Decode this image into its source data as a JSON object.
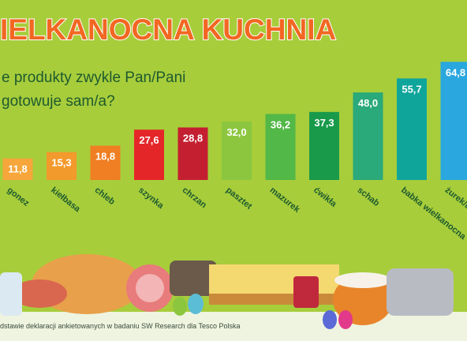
{
  "chart_data": {
    "type": "bar",
    "title": "IELKANOCNA KUCHNIA",
    "subtitle": [
      "e produkty zwykle Pan/Pani",
      "gotowuje sam/a?"
    ],
    "categories": [
      "gonez",
      "kiełbasa",
      "chleb",
      "szynka",
      "chrzan",
      "pasztet",
      "mazurek",
      "ćwikła",
      "schab",
      "babka wielkanocna",
      "żurek/barszcz biały"
    ],
    "values": [
      11.8,
      15.3,
      18.8,
      27.6,
      28.8,
      32.0,
      36.2,
      37.3,
      48.0,
      55.7,
      64.8
    ],
    "value_labels": [
      "11,8",
      "15,3",
      "18,8",
      "27,6",
      "28,8",
      "32,0",
      "36,2",
      "37,3",
      "48,0",
      "55,7",
      "64,8"
    ],
    "colors": [
      "#f6a63a",
      "#f39a2c",
      "#f07e22",
      "#e52628",
      "#c41f30",
      "#8cc63f",
      "#52b848",
      "#199a4a",
      "#2aa97a",
      "#0fa59b",
      "#2aa7df"
    ],
    "footnote": "dstawie deklaracji ankietowanych w badaniu SW Research dla Tesco Polska"
  }
}
